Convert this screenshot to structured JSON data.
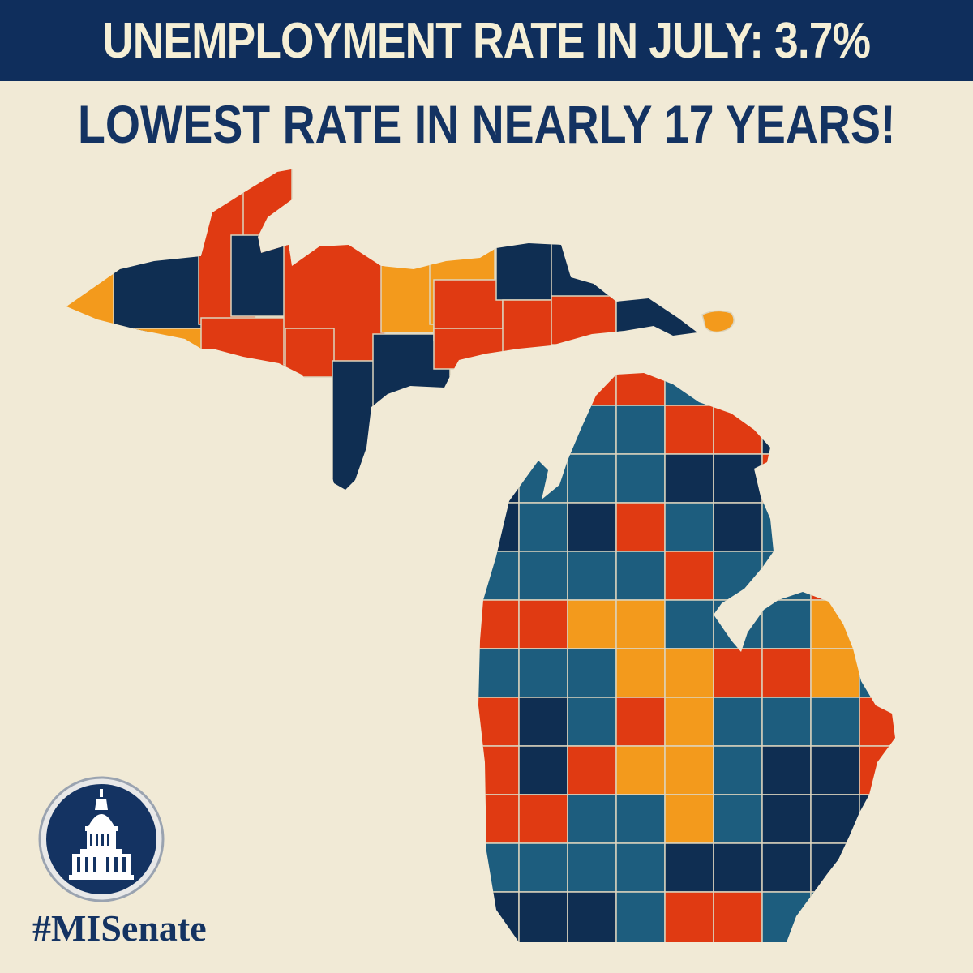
{
  "headline": "UNEMPLOYMENT RATE IN JULY: 3.7%",
  "subheadline": "LOWEST RATE IN NEARLY 17 YEARS!",
  "hashtag": "#MISenate",
  "logo": {
    "icon": "capitol-dome-icon"
  },
  "colors": {
    "banner": "#0f2e5c",
    "headline_text": "#f5efd6",
    "subheadline_text": "#143362",
    "background": "#f1ead6",
    "county_palette": [
      "#0f2e52",
      "#1d5d7e",
      "#e03a12",
      "#f39a1c"
    ]
  }
}
